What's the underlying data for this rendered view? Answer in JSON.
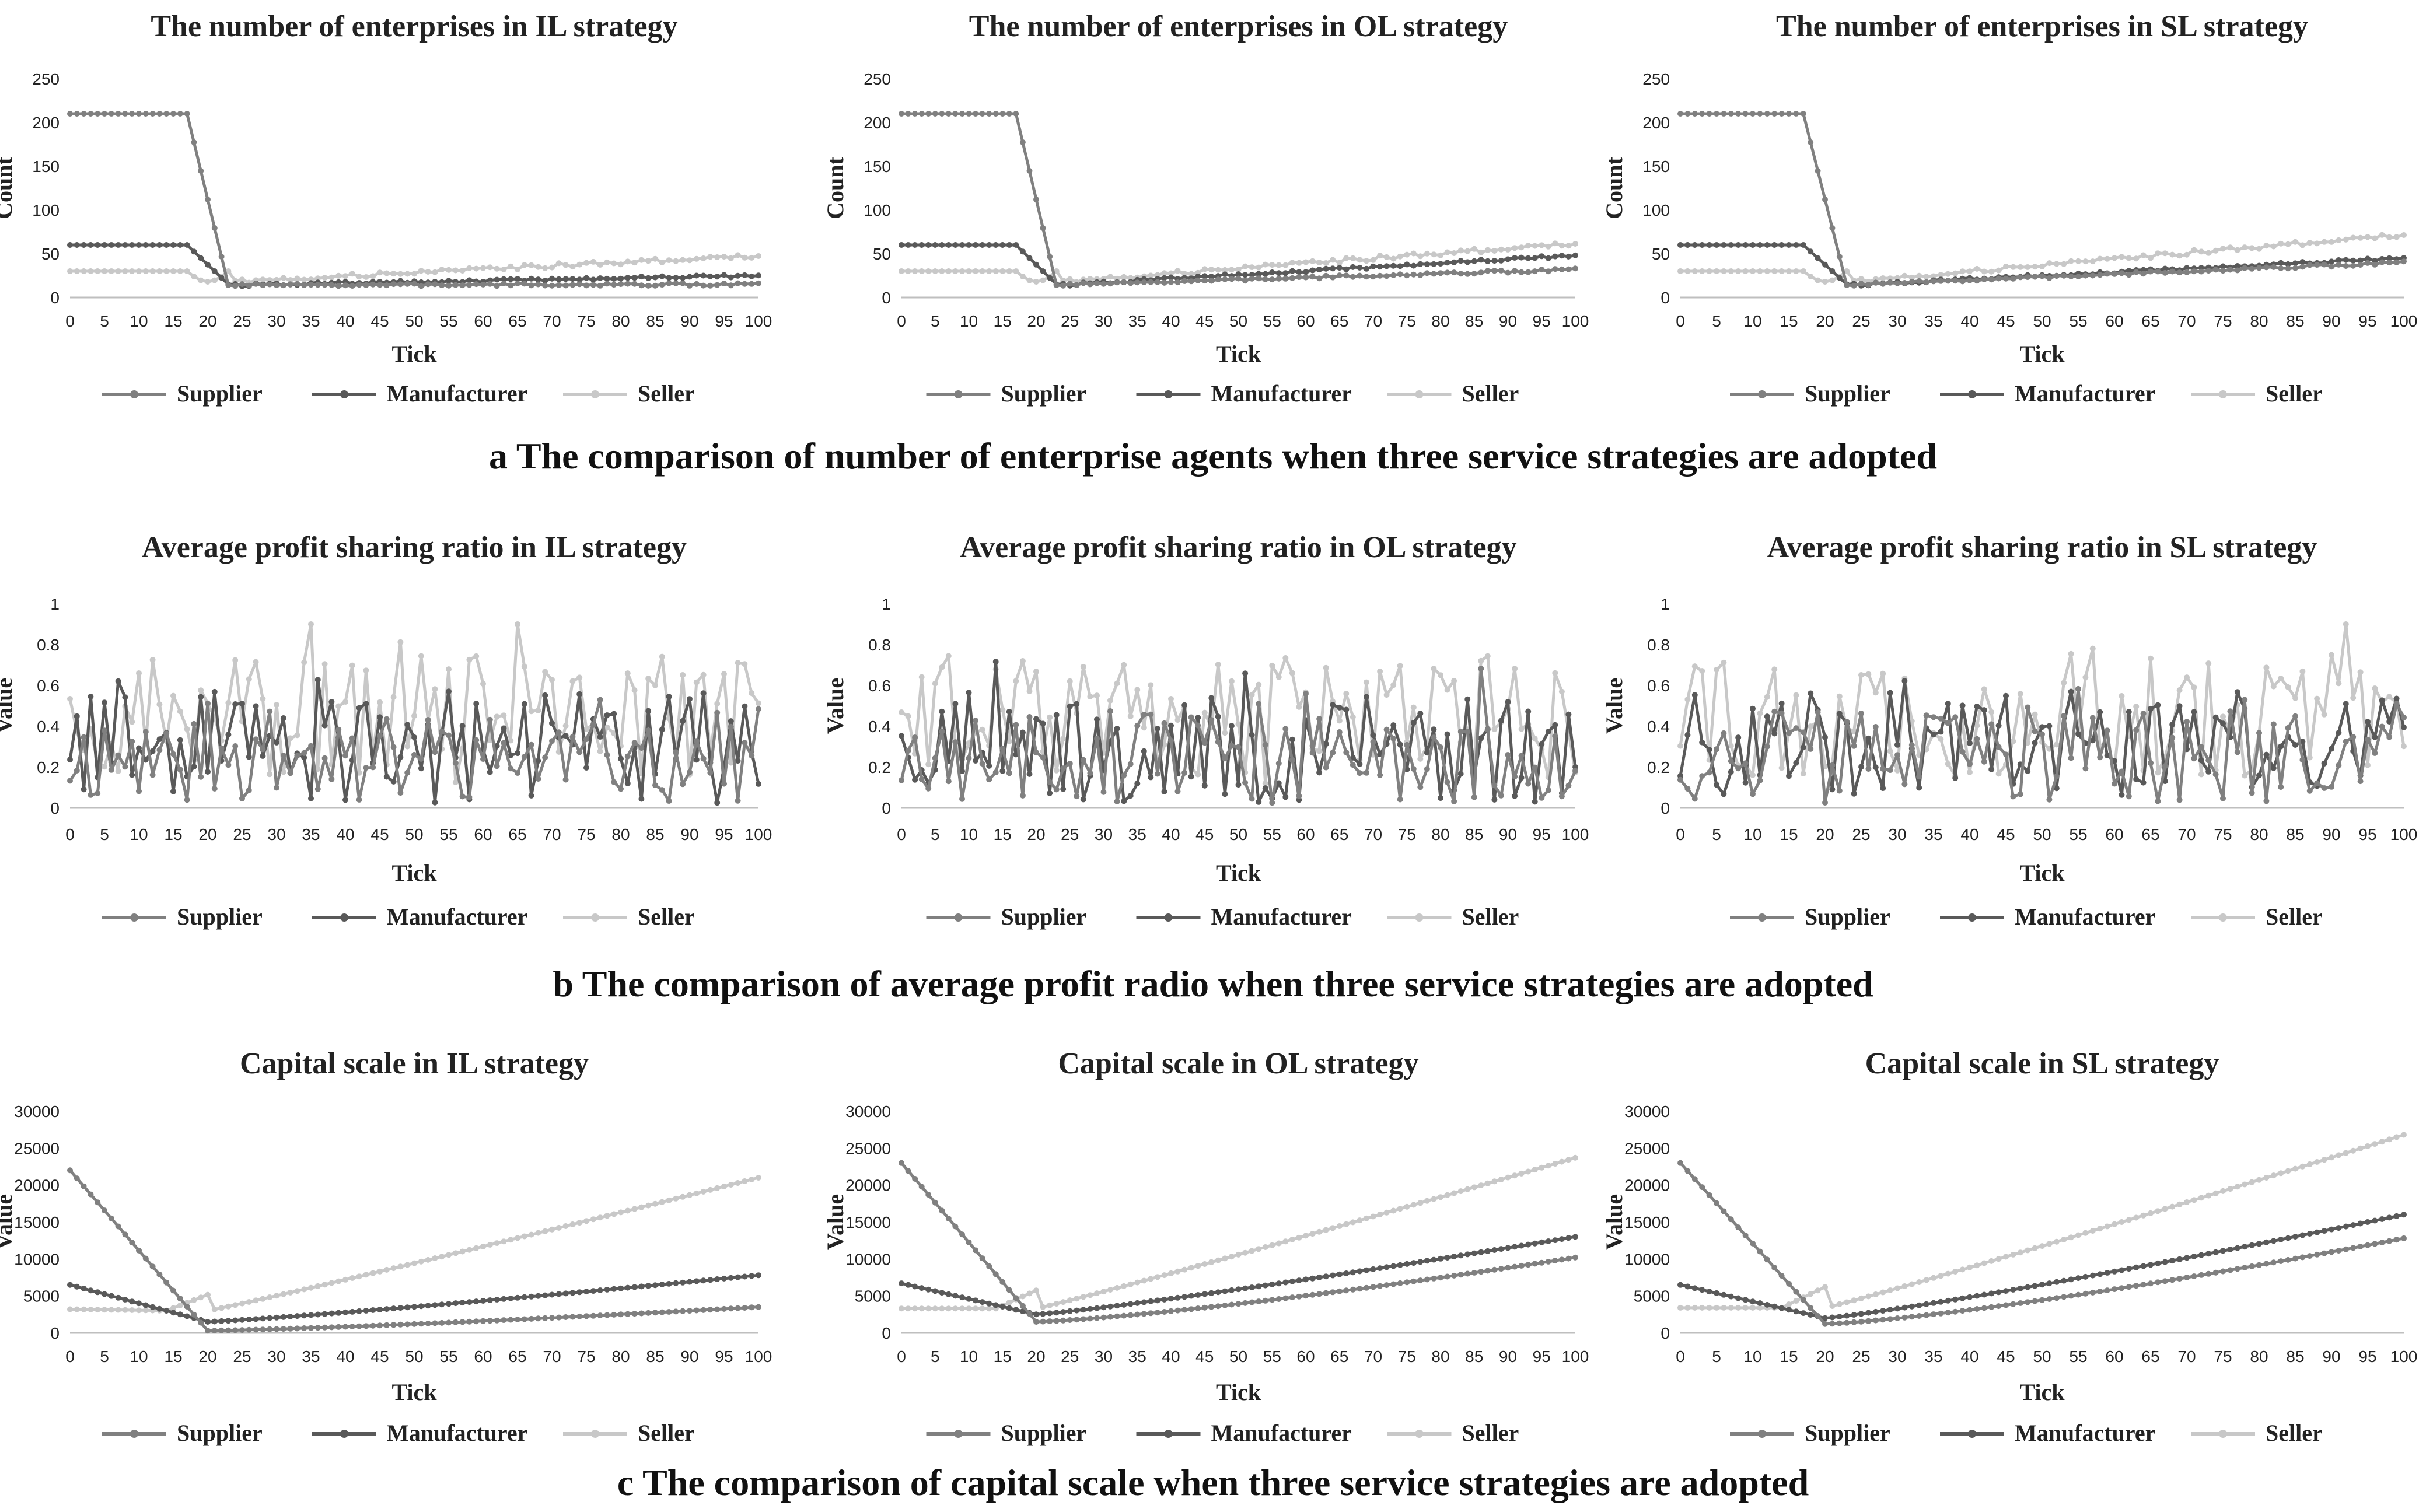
{
  "captions": [
    "a The comparison of number of enterprise agents when three service strategies are adopted",
    "b The comparison of average profit radio when three service strategies are adopted",
    "c The comparison of capital scale when three service strategies are adopted"
  ],
  "colors": {
    "Supplier": "#808080",
    "Manufacturer": "#595959",
    "Seller": "#c8c8c8",
    "axis": "#bfbfbf",
    "text": "#222222"
  },
  "chart_data": [
    {
      "type": "line",
      "title": "The number of enterprises in IL strategy",
      "xlabel": "Tick",
      "ylabel": "Count",
      "ylim": [
        0,
        250
      ],
      "yticks": [
        0,
        50,
        100,
        150,
        200,
        250
      ],
      "xticks": [
        0,
        5,
        10,
        15,
        20,
        25,
        30,
        35,
        40,
        45,
        50,
        55,
        60,
        65,
        70,
        75,
        80,
        85,
        90,
        95,
        100
      ],
      "pattern": "count",
      "params": {
        "sellerEnd": 48,
        "manEnd": 25,
        "supEnd": 15
      },
      "series": [
        {
          "name": "Supplier"
        },
        {
          "name": "Manufacturer"
        },
        {
          "name": "Seller"
        }
      ],
      "legend": "bottom"
    },
    {
      "type": "line",
      "title": "The number of enterprises in OL strategy",
      "xlabel": "Tick",
      "ylabel": "Count",
      "ylim": [
        0,
        250
      ],
      "yticks": [
        0,
        50,
        100,
        150,
        200,
        250
      ],
      "xticks": [
        0,
        5,
        10,
        15,
        20,
        25,
        30,
        35,
        40,
        45,
        50,
        55,
        60,
        65,
        70,
        75,
        80,
        85,
        90,
        95,
        100
      ],
      "pattern": "count",
      "params": {
        "sellerEnd": 62,
        "manEnd": 48,
        "supEnd": 32
      },
      "series": [
        {
          "name": "Supplier"
        },
        {
          "name": "Manufacturer"
        },
        {
          "name": "Seller"
        }
      ],
      "legend": "bottom"
    },
    {
      "type": "line",
      "title": "The number of enterprises in SL strategy",
      "xlabel": "Tick",
      "ylabel": "Count",
      "ylim": [
        0,
        250
      ],
      "yticks": [
        0,
        50,
        100,
        150,
        200,
        250
      ],
      "xticks": [
        0,
        5,
        10,
        15,
        20,
        25,
        30,
        35,
        40,
        45,
        50,
        55,
        60,
        65,
        70,
        75,
        80,
        85,
        90,
        95,
        100
      ],
      "pattern": "count",
      "params": {
        "sellerEnd": 72,
        "manEnd": 45,
        "supEnd": 40
      },
      "series": [
        {
          "name": "Supplier"
        },
        {
          "name": "Manufacturer"
        },
        {
          "name": "Seller"
        }
      ],
      "legend": "bottom"
    },
    {
      "type": "line",
      "title": "Average profit sharing ratio in IL strategy",
      "xlabel": "Tick",
      "ylabel": "Value",
      "ylim": [
        0,
        1
      ],
      "yticks": [
        0,
        0.2,
        0.4,
        0.6,
        0.8,
        1
      ],
      "xticks": [
        0,
        5,
        10,
        15,
        20,
        25,
        30,
        35,
        40,
        45,
        50,
        55,
        60,
        65,
        70,
        75,
        80,
        85,
        90,
        95,
        100
      ],
      "pattern": "ratio",
      "params": {
        "seed": 11
      },
      "series": [
        {
          "name": "Supplier"
        },
        {
          "name": "Manufacturer"
        },
        {
          "name": "Seller"
        }
      ],
      "legend": "bottom"
    },
    {
      "type": "line",
      "title": "Average profit sharing ratio in OL strategy",
      "xlabel": "Tick",
      "ylabel": "Value",
      "ylim": [
        0,
        1
      ],
      "yticks": [
        0,
        0.2,
        0.4,
        0.6,
        0.8,
        1
      ],
      "xticks": [
        0,
        5,
        10,
        15,
        20,
        25,
        30,
        35,
        40,
        45,
        50,
        55,
        60,
        65,
        70,
        75,
        80,
        85,
        90,
        95,
        100
      ],
      "pattern": "ratio",
      "params": {
        "seed": 23
      },
      "series": [
        {
          "name": "Supplier"
        },
        {
          "name": "Manufacturer"
        },
        {
          "name": "Seller"
        }
      ],
      "legend": "bottom"
    },
    {
      "type": "line",
      "title": "Average profit sharing ratio in SL strategy",
      "xlabel": "Tick",
      "ylabel": "Value",
      "ylim": [
        0,
        1
      ],
      "yticks": [
        0,
        0.2,
        0.4,
        0.6,
        0.8,
        1
      ],
      "xticks": [
        0,
        5,
        10,
        15,
        20,
        25,
        30,
        35,
        40,
        45,
        50,
        55,
        60,
        65,
        70,
        75,
        80,
        85,
        90,
        95,
        100
      ],
      "pattern": "ratio",
      "params": {
        "seed": 37
      },
      "series": [
        {
          "name": "Supplier"
        },
        {
          "name": "Manufacturer"
        },
        {
          "name": "Seller"
        }
      ],
      "legend": "bottom"
    },
    {
      "type": "line",
      "title": "Capital scale in IL strategy",
      "xlabel": "Tick",
      "ylabel": "Value",
      "ylim": [
        0,
        30000
      ],
      "yticks": [
        0,
        5000,
        10000,
        15000,
        20000,
        25000,
        30000
      ],
      "xticks": [
        0,
        5,
        10,
        15,
        20,
        25,
        30,
        35,
        40,
        45,
        50,
        55,
        60,
        65,
        70,
        75,
        80,
        85,
        90,
        95,
        100
      ],
      "pattern": "capital",
      "params": {
        "supStart": 22000,
        "supMin": 300,
        "supEnd": 3500,
        "manStart": 6500,
        "manMin": 1500,
        "manEnd": 7800,
        "selStart": 3200,
        "selMin": 3000,
        "selEnd": 21000
      },
      "series": [
        {
          "name": "Supplier"
        },
        {
          "name": "Manufacturer"
        },
        {
          "name": "Seller"
        }
      ],
      "legend": "bottom"
    },
    {
      "type": "line",
      "title": "Capital scale in OL strategy",
      "xlabel": "Tick",
      "ylabel": "Value",
      "ylim": [
        0,
        30000
      ],
      "yticks": [
        0,
        5000,
        10000,
        15000,
        20000,
        25000,
        30000
      ],
      "xticks": [
        0,
        5,
        10,
        15,
        20,
        25,
        30,
        35,
        40,
        45,
        50,
        55,
        60,
        65,
        70,
        75,
        80,
        85,
        90,
        95,
        100
      ],
      "pattern": "capital",
      "params": {
        "supStart": 23000,
        "supMin": 1500,
        "supEnd": 10200,
        "manStart": 6700,
        "manMin": 2500,
        "manEnd": 13000,
        "selStart": 3300,
        "selMin": 3300,
        "selEnd": 23700
      },
      "series": [
        {
          "name": "Supplier"
        },
        {
          "name": "Manufacturer"
        },
        {
          "name": "Seller"
        }
      ],
      "legend": "bottom"
    },
    {
      "type": "line",
      "title": "Capital scale in SL strategy",
      "xlabel": "Tick",
      "ylabel": "Value",
      "ylim": [
        0,
        30000
      ],
      "yticks": [
        0,
        5000,
        10000,
        15000,
        20000,
        25000,
        30000
      ],
      "xticks": [
        0,
        5,
        10,
        15,
        20,
        25,
        30,
        35,
        40,
        45,
        50,
        55,
        60,
        65,
        70,
        75,
        80,
        85,
        90,
        95,
        100
      ],
      "pattern": "capital",
      "params": {
        "supStart": 23000,
        "supMin": 1200,
        "supEnd": 12800,
        "manStart": 6500,
        "manMin": 2000,
        "manEnd": 16000,
        "selStart": 3400,
        "selMin": 3400,
        "selEnd": 26800
      },
      "series": [
        {
          "name": "Supplier"
        },
        {
          "name": "Manufacturer"
        },
        {
          "name": "Seller"
        }
      ],
      "legend": "bottom"
    }
  ]
}
